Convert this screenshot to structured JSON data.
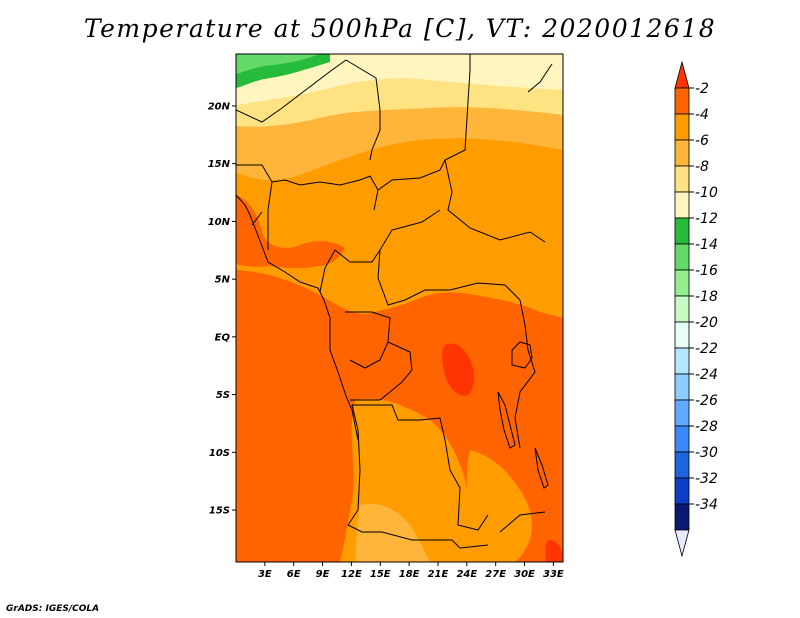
{
  "title": "Temperature at 500hPa [C], VT: 2020012618",
  "credit": "GrADS: IGES/COLA",
  "map": {
    "lat_ticks": [
      "20N",
      "15N",
      "10N",
      "5N",
      "EQ",
      "5S",
      "10S",
      "15S"
    ],
    "lon_ticks": [
      "3E",
      "6E",
      "9E",
      "12E",
      "15E",
      "18E",
      "21E",
      "24E",
      "27E",
      "30E",
      "33E"
    ],
    "lat_range": [
      -19.5,
      24.5
    ],
    "lon_range": [
      0,
      34
    ]
  },
  "colorbar": {
    "labels": [
      "-2",
      "-4",
      "-6",
      "-8",
      "-10",
      "-12",
      "-14",
      "-16",
      "-18",
      "-20",
      "-22",
      "-24",
      "-26",
      "-28",
      "-30",
      "-32",
      "-34"
    ],
    "colors": [
      "#ff3400",
      "#ff6400",
      "#ff9c00",
      "#ffb43a",
      "#ffe383",
      "#fff5bf",
      "#26bb3a",
      "#63d96a",
      "#93ef8d",
      "#c8fac3",
      "#e6fef4",
      "#b4e6fe",
      "#8dccff",
      "#61aaff",
      "#3b88f8",
      "#1f64e0",
      "#0f3ec6",
      "#0a1a72",
      "#e8e8ff"
    ]
  }
}
